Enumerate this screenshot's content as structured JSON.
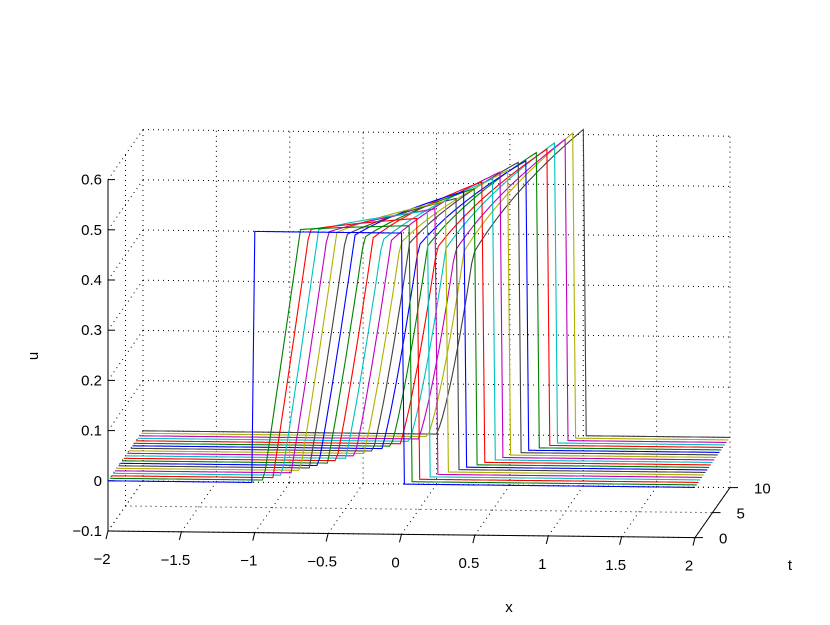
{
  "chart_data": {
    "type": "line",
    "projection": "3d-waterfall",
    "title": "",
    "xlabel": "x",
    "ylabel": "t",
    "zlabel": "u",
    "xlim": [
      -2,
      2
    ],
    "ylim": [
      0,
      10
    ],
    "zlim": [
      -0.1,
      0.6
    ],
    "grid": true,
    "legend": "none",
    "x_ticks": [
      "−2",
      "−1.5",
      "−1",
      "−0.5",
      "0",
      "0.5",
      "1",
      "1.5",
      "2"
    ],
    "y_ticks": [
      "0",
      "5",
      "10"
    ],
    "z_ticks": [
      "−0.1",
      "0",
      "0.1",
      "0.2",
      "0.3",
      "0.4",
      "0.5",
      "0.6"
    ],
    "series_colors": [
      "#0000ff",
      "#008000",
      "#ff0000",
      "#00c0c0",
      "#c000c0",
      "#b0b000",
      "#404040",
      "#0000ff",
      "#008000",
      "#ff0000",
      "#00c0c0",
      "#c000c0",
      "#b0b000",
      "#404040",
      "#0000ff",
      "#008000",
      "#ff0000",
      "#00c0c0",
      "#c000c0",
      "#b0b000",
      "#404040"
    ],
    "series": [
      {
        "t": 0.0,
        "profile": {
          "left": -1.0,
          "right": 0.0,
          "top_left": 0.5,
          "top_right": 0.5,
          "base": 0.0
        }
      },
      {
        "t": 0.5,
        "profile": {
          "left": -0.95,
          "right": 0.05,
          "top_left": 0.49,
          "top_right": 0.51,
          "base": 0.0
        }
      },
      {
        "t": 1.0,
        "profile": {
          "left": -0.9,
          "right": 0.1,
          "top_left": 0.47,
          "top_right": 0.52,
          "base": 0.0
        }
      },
      {
        "t": 1.5,
        "profile": {
          "left": -0.85,
          "right": 0.15,
          "top_left": 0.45,
          "top_right": 0.53,
          "base": 0.0
        }
      },
      {
        "t": 2.0,
        "profile": {
          "left": -0.8,
          "right": 0.2,
          "top_left": 0.43,
          "top_right": 0.53,
          "base": 0.0
        }
      },
      {
        "t": 2.5,
        "profile": {
          "left": -0.75,
          "right": 0.25,
          "top_left": 0.41,
          "top_right": 0.54,
          "base": 0.0
        }
      },
      {
        "t": 3.0,
        "profile": {
          "left": -0.7,
          "right": 0.3,
          "top_left": 0.39,
          "top_right": 0.54,
          "base": 0.0
        }
      },
      {
        "t": 3.5,
        "profile": {
          "left": -0.65,
          "right": 0.35,
          "top_left": 0.37,
          "top_right": 0.55,
          "base": 0.0
        }
      },
      {
        "t": 4.0,
        "profile": {
          "left": -0.6,
          "right": 0.4,
          "top_left": 0.35,
          "top_right": 0.55,
          "base": 0.0
        }
      },
      {
        "t": 4.5,
        "profile": {
          "left": -0.55,
          "right": 0.45,
          "top_left": 0.33,
          "top_right": 0.56,
          "base": 0.0
        }
      },
      {
        "t": 5.0,
        "profile": {
          "left": -0.5,
          "right": 0.5,
          "top_left": 0.31,
          "top_right": 0.56,
          "base": 0.0
        }
      },
      {
        "t": 5.5,
        "profile": {
          "left": -0.45,
          "right": 0.55,
          "top_left": 0.29,
          "top_right": 0.57,
          "base": 0.0
        }
      },
      {
        "t": 6.0,
        "profile": {
          "left": -0.4,
          "right": 0.6,
          "top_left": 0.27,
          "top_right": 0.57,
          "base": 0.0
        }
      },
      {
        "t": 6.5,
        "profile": {
          "left": -0.35,
          "right": 0.65,
          "top_left": 0.25,
          "top_right": 0.58,
          "base": 0.0
        }
      },
      {
        "t": 7.0,
        "profile": {
          "left": -0.3,
          "right": 0.7,
          "top_left": 0.23,
          "top_right": 0.58,
          "base": 0.0
        }
      },
      {
        "t": 7.5,
        "profile": {
          "left": -0.25,
          "right": 0.75,
          "top_left": 0.21,
          "top_right": 0.59,
          "base": 0.0
        }
      },
      {
        "t": 8.0,
        "profile": {
          "left": -0.2,
          "right": 0.8,
          "top_left": 0.19,
          "top_right": 0.59,
          "base": 0.0
        }
      },
      {
        "t": 8.5,
        "profile": {
          "left": -0.15,
          "right": 0.85,
          "top_left": 0.17,
          "top_right": 0.6,
          "base": 0.0
        }
      },
      {
        "t": 9.0,
        "profile": {
          "left": -0.1,
          "right": 0.9,
          "top_left": 0.15,
          "top_right": 0.6,
          "base": 0.0
        }
      },
      {
        "t": 9.5,
        "profile": {
          "left": -0.05,
          "right": 0.95,
          "top_left": 0.13,
          "top_right": 0.61,
          "base": 0.0
        }
      },
      {
        "t": 10.0,
        "profile": {
          "left": 0.0,
          "right": 1.0,
          "top_left": 0.11,
          "top_right": 0.61,
          "base": 0.0
        }
      }
    ]
  }
}
